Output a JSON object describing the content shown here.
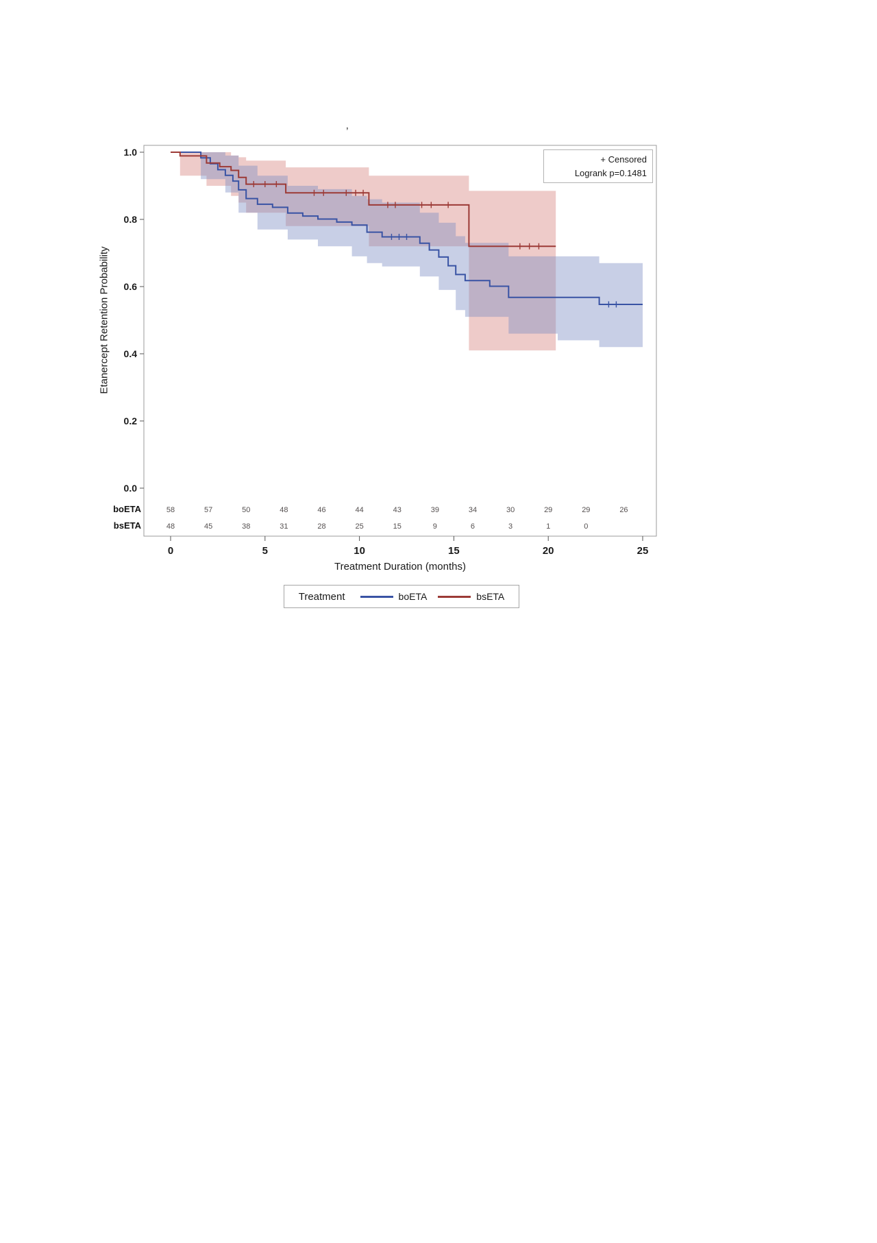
{
  "page": {
    "stray_mark": "’"
  },
  "chart_data": {
    "type": "line",
    "subtype": "kaplan-meier-step",
    "title": "",
    "xlabel": "Treatment Duration (months)",
    "ylabel": "Etanercept Retention Probability",
    "xlim": [
      0,
      25
    ],
    "ylim": [
      0.0,
      1.0
    ],
    "grid": false,
    "x_ticks": [
      0,
      5,
      10,
      15,
      20,
      25
    ],
    "x_tick_labels": [
      "0",
      "5",
      "10",
      "15",
      "20",
      "25"
    ],
    "y_ticks": [
      0.0,
      0.2,
      0.4,
      0.6,
      0.8,
      1.0
    ],
    "y_tick_labels": [
      "0.0",
      "0.2",
      "0.4",
      "0.6",
      "0.8",
      "1.0"
    ],
    "legend": {
      "title": "Treatment",
      "position": "bottom"
    },
    "annotations": {
      "censored": "+ Censored",
      "logrank": "Logrank p=0.1481"
    },
    "series": [
      {
        "name": "boETA",
        "color": "#3953a4",
        "band_color": "#7b8cc4",
        "band_opacity": 0.42,
        "steps": [
          [
            0,
            1.0
          ],
          [
            1.6,
            0.983
          ],
          [
            2.1,
            0.966
          ],
          [
            2.5,
            0.948
          ],
          [
            2.9,
            0.931
          ],
          [
            3.3,
            0.914
          ],
          [
            3.6,
            0.888
          ],
          [
            4.0,
            0.862
          ],
          [
            4.6,
            0.845
          ],
          [
            5.4,
            0.836
          ],
          [
            6.2,
            0.819
          ],
          [
            7.0,
            0.81
          ],
          [
            7.8,
            0.801
          ],
          [
            8.8,
            0.792
          ],
          [
            9.6,
            0.783
          ],
          [
            10.4,
            0.762
          ],
          [
            11.2,
            0.748
          ],
          [
            13.2,
            0.729
          ],
          [
            13.7,
            0.709
          ],
          [
            14.2,
            0.688
          ],
          [
            14.7,
            0.662
          ],
          [
            15.1,
            0.636
          ],
          [
            15.6,
            0.618
          ],
          [
            16.9,
            0.601
          ],
          [
            17.9,
            0.568
          ],
          [
            22.7,
            0.547
          ],
          [
            25,
            0.547
          ]
        ],
        "censored": [
          [
            11.7,
            0.748
          ],
          [
            12.1,
            0.748
          ],
          [
            12.5,
            0.748
          ],
          [
            23.2,
            0.547
          ],
          [
            23.6,
            0.547
          ]
        ],
        "band": [
          [
            0,
            1.0,
            1.0
          ],
          [
            1.6,
            0.92,
            1.0
          ],
          [
            2.9,
            0.88,
            0.99
          ],
          [
            3.6,
            0.82,
            0.96
          ],
          [
            4.6,
            0.77,
            0.93
          ],
          [
            6.2,
            0.74,
            0.9
          ],
          [
            7.8,
            0.72,
            0.89
          ],
          [
            9.6,
            0.69,
            0.87
          ],
          [
            10.4,
            0.67,
            0.86
          ],
          [
            11.2,
            0.66,
            0.85
          ],
          [
            13.2,
            0.63,
            0.82
          ],
          [
            14.2,
            0.59,
            0.79
          ],
          [
            15.1,
            0.53,
            0.75
          ],
          [
            15.6,
            0.51,
            0.73
          ],
          [
            17.9,
            0.46,
            0.69
          ],
          [
            20.5,
            0.44,
            0.69
          ],
          [
            22.7,
            0.42,
            0.67
          ],
          [
            25,
            0.42,
            0.67
          ]
        ]
      },
      {
        "name": "bsETA",
        "color": "#9c3a36",
        "band_color": "#d98c87",
        "band_opacity": 0.45,
        "steps": [
          [
            0,
            1.0
          ],
          [
            0.5,
            0.989
          ],
          [
            1.9,
            0.968
          ],
          [
            2.6,
            0.957
          ],
          [
            3.2,
            0.946
          ],
          [
            3.6,
            0.925
          ],
          [
            4.0,
            0.905
          ],
          [
            6.1,
            0.879
          ],
          [
            10.5,
            0.843
          ],
          [
            15.8,
            0.72
          ],
          [
            20.4,
            0.72
          ]
        ],
        "censored": [
          [
            4.4,
            0.905
          ],
          [
            5.0,
            0.905
          ],
          [
            5.6,
            0.905
          ],
          [
            7.6,
            0.879
          ],
          [
            8.1,
            0.879
          ],
          [
            9.3,
            0.879
          ],
          [
            9.8,
            0.879
          ],
          [
            10.2,
            0.879
          ],
          [
            11.5,
            0.843
          ],
          [
            11.9,
            0.843
          ],
          [
            13.3,
            0.843
          ],
          [
            13.8,
            0.843
          ],
          [
            14.7,
            0.843
          ],
          [
            18.5,
            0.72
          ],
          [
            19.0,
            0.72
          ],
          [
            19.5,
            0.72
          ]
        ],
        "band": [
          [
            0,
            1.0,
            1.0
          ],
          [
            0.5,
            0.93,
            1.0
          ],
          [
            1.9,
            0.9,
            1.0
          ],
          [
            3.2,
            0.87,
            0.99
          ],
          [
            3.6,
            0.85,
            0.985
          ],
          [
            4.0,
            0.82,
            0.975
          ],
          [
            6.1,
            0.78,
            0.955
          ],
          [
            10.5,
            0.72,
            0.93
          ],
          [
            15.8,
            0.41,
            0.885
          ],
          [
            20.4,
            0.41,
            0.885
          ]
        ]
      }
    ],
    "risk_table": {
      "rows": [
        {
          "label": "boETA",
          "times": [
            0,
            2,
            4,
            6,
            8,
            10,
            12,
            14,
            16,
            18,
            20,
            22,
            24
          ],
          "counts": [
            "58",
            "57",
            "50",
            "48",
            "46",
            "44",
            "43",
            "39",
            "34",
            "30",
            "29",
            "29",
            "26"
          ]
        },
        {
          "label": "bsETA",
          "times": [
            0,
            2,
            4,
            6,
            8,
            10,
            12,
            14,
            16,
            18,
            20,
            22
          ],
          "counts": [
            "48",
            "45",
            "38",
            "31",
            "28",
            "25",
            "15",
            "9",
            "6",
            "3",
            "1",
            "0"
          ]
        }
      ]
    }
  }
}
